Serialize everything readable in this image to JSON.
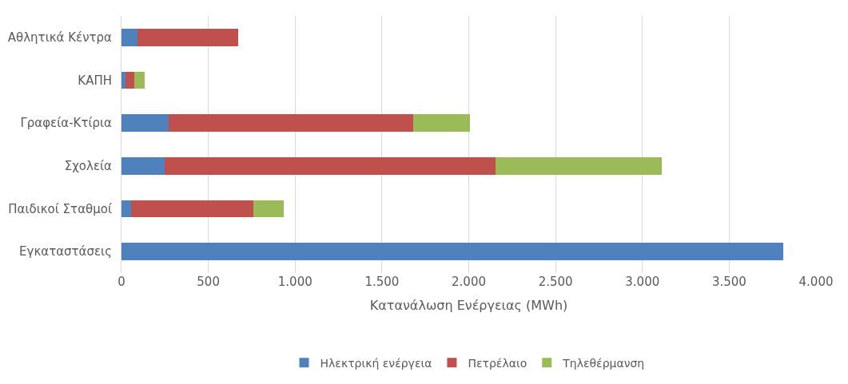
{
  "chart_data": {
    "type": "bar",
    "orientation": "horizontal",
    "stacked": true,
    "xlabel": "Κατανάλωση Ενέργειας (MWh)",
    "categories": [
      "Αθλητικά Κέντρα",
      "ΚΑΠΗ",
      "Γραφεία-Κτίρια",
      "Σχολεία",
      "Παιδικοί Σταθμοί",
      "Εγκαταστάσεις"
    ],
    "series": [
      {
        "name": "Ηλεκτρική ενέργεια",
        "color": "#4f81bd",
        "values": [
          90,
          22,
          271,
          247,
          55,
          3810
        ]
      },
      {
        "name": "Πετρέλαιο",
        "color": "#c0504d",
        "values": [
          580,
          53,
          1407,
          1907,
          704,
          null
        ]
      },
      {
        "name": "Τηλεθέρμανση",
        "color": "#9bbb59",
        "values": [
          null,
          57,
          330,
          956,
          175,
          null
        ]
      }
    ],
    "xlim": [
      0,
      4000
    ],
    "xticks": [
      0,
      500,
      {
        "value": 1000,
        "label": "1.000"
      },
      {
        "value": 1500,
        "label": "1.500"
      },
      {
        "value": 2000,
        "label": "2.000"
      },
      {
        "value": 2500,
        "label": "2.500"
      },
      {
        "value": 3000,
        "label": "3.000"
      },
      {
        "value": 3500,
        "label": "3.500"
      },
      {
        "value": 4000,
        "label": "4.000"
      }
    ],
    "grid": "x",
    "legend": "bottom"
  }
}
